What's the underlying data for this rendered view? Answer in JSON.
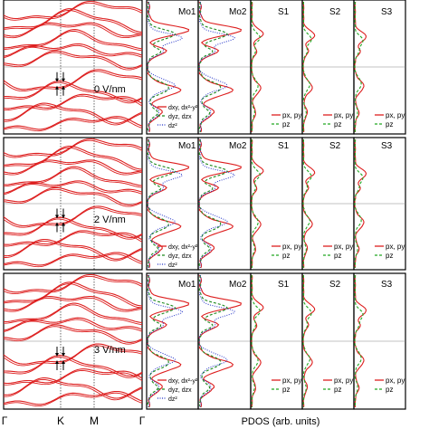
{
  "colors": {
    "band": "#dd1f1f",
    "d_inplane": "#dd1f1f",
    "d_outplane": "#1f8a1f",
    "d_z2": "#2434c8",
    "p_xy": "#dd1f1f",
    "p_z": "#22a822",
    "axis": "#000000",
    "divider": "#888888"
  },
  "panels": [
    {
      "field_label": "0 V/nm"
    },
    {
      "field_label": "2 V/nm"
    },
    {
      "field_label": "3 V/nm"
    }
  ],
  "band_xticks": [
    "Γ",
    "K",
    "M",
    "Γ"
  ],
  "pdos_xlabel": "PDOS (arb. units)",
  "pdos_columns": [
    "Mo1",
    "Mo2",
    "S1",
    "S2",
    "S3"
  ],
  "legend_mo": [
    "dxy, dx²-y²",
    "dyz, dzx",
    "dz²"
  ],
  "legend_s": [
    "px, py",
    "pz"
  ],
  "arrows": [
    "down",
    "down",
    "up",
    "up"
  ],
  "chart_data": [
    {
      "type": "line",
      "title": "",
      "xlabel": "",
      "ylabel": "",
      "x_ticks": [
        "Γ",
        "K",
        "M",
        "Γ"
      ],
      "panels": [
        "0 V/nm",
        "2 V/nm",
        "3 V/nm"
      ],
      "series": [
        {
          "values": []
        }
      ]
    },
    {
      "type": "line",
      "title": "",
      "xlabel": "PDOS (arb. units)",
      "ylabel": "",
      "columns": [
        "Mo1",
        "Mo2",
        "S1",
        "S2",
        "S3"
      ],
      "series": [
        {
          "name": "dxy, dx²-y²",
          "values": []
        },
        {
          "name": "dyz, dzx",
          "values": []
        },
        {
          "name": "dz²",
          "values": []
        },
        {
          "name": "px, py",
          "values": []
        },
        {
          "name": "pz",
          "values": []
        }
      ]
    }
  ]
}
